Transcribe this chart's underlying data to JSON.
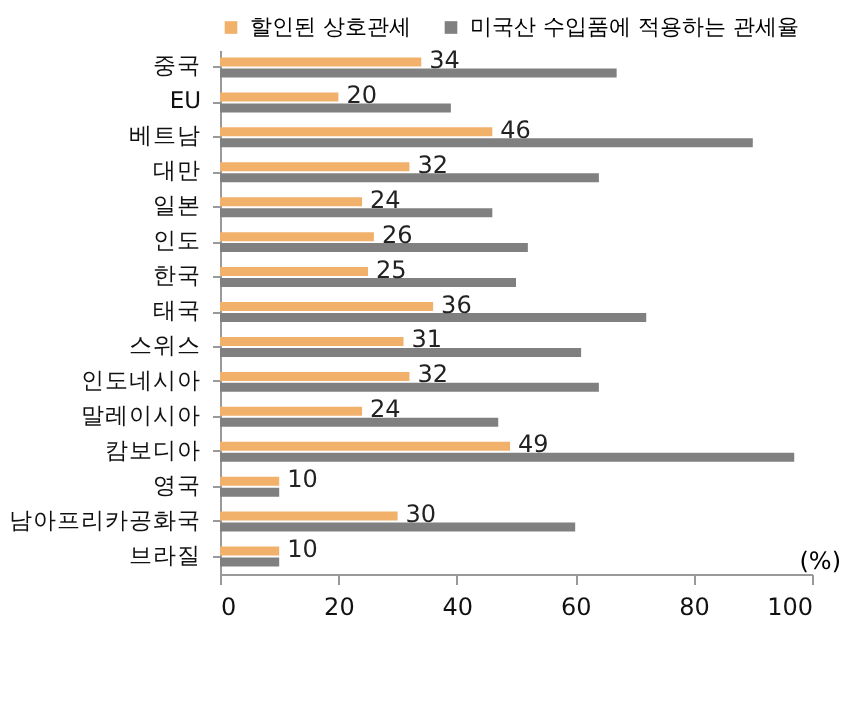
{
  "chart_data": {
    "type": "bar",
    "orientation": "horizontal",
    "xlabel": "(%)",
    "categories": [
      "중국",
      "EU",
      "베트남",
      "대만",
      "일본",
      "인도",
      "한국",
      "태국",
      "스위스",
      "인도네시아",
      "말레이시아",
      "캄보디아",
      "영국",
      "남아프리카공화국",
      "브라질"
    ],
    "series": [
      {
        "name": "할인된 상호관세",
        "color": "#f2b16b",
        "values": [
          34,
          20,
          46,
          32,
          24,
          26,
          25,
          36,
          31,
          32,
          24,
          49,
          10,
          30,
          10
        ],
        "value_labels": [
          "34",
          "20",
          "46",
          "32",
          "24",
          "26",
          "25",
          "36",
          "31",
          "32",
          "24",
          "49",
          "10",
          "30",
          "10"
        ]
      },
      {
        "name": "미국산 수입품에 적용하는 관세율",
        "color": "#808080",
        "values": [
          67,
          39,
          90,
          64,
          46,
          52,
          50,
          72,
          61,
          64,
          47,
          97,
          10,
          60,
          10
        ]
      }
    ],
    "xlim": [
      0,
      100
    ],
    "xticks": [
      0,
      20,
      40,
      60,
      80,
      100
    ],
    "grid": false,
    "legend": "top"
  }
}
